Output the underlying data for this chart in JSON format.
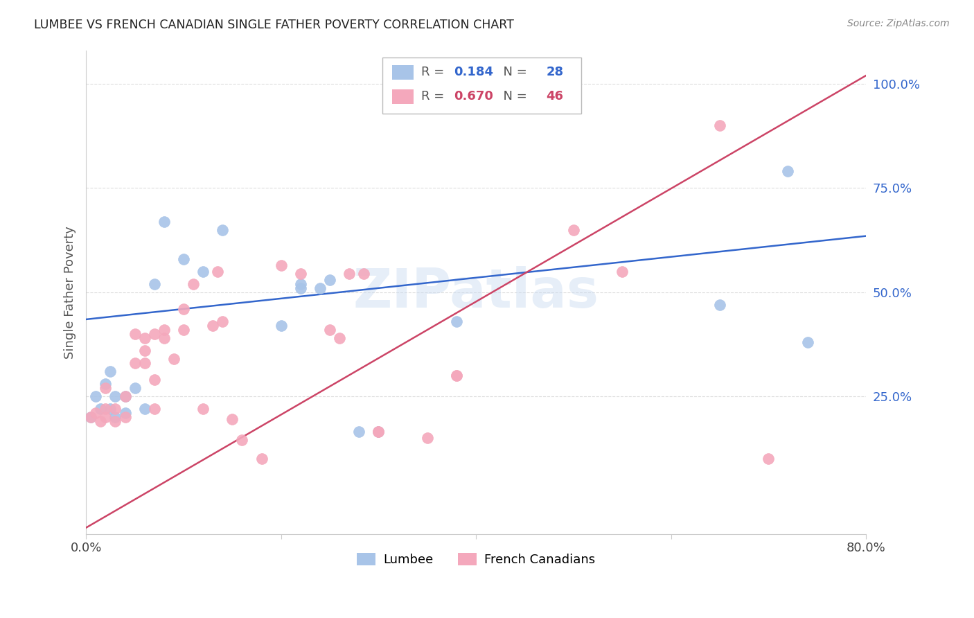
{
  "title": "LUMBEE VS FRENCH CANADIAN SINGLE FATHER POVERTY CORRELATION CHART",
  "source": "Source: ZipAtlas.com",
  "ylabel": "Single Father Poverty",
  "xlim": [
    0.0,
    0.8
  ],
  "ylim": [
    -0.08,
    1.08
  ],
  "x_ticks": [
    0.0,
    0.2,
    0.4,
    0.6,
    0.8
  ],
  "x_tick_labels": [
    "0.0%",
    "",
    "",
    "",
    "80.0%"
  ],
  "y_ticks": [
    0.25,
    0.5,
    0.75,
    1.0
  ],
  "y_tick_labels": [
    "25.0%",
    "50.0%",
    "75.0%",
    "100.0%"
  ],
  "lumbee_color": "#a8c4e8",
  "french_color": "#f4a8bc",
  "lumbee_line_color": "#3366cc",
  "french_line_color": "#cc4466",
  "lumbee_R": 0.184,
  "lumbee_N": 28,
  "french_R": 0.67,
  "french_N": 46,
  "watermark": "ZIPatlas",
  "background_color": "#ffffff",
  "lumbee_line_x0": 0.0,
  "lumbee_line_y0": 0.435,
  "lumbee_line_x1": 0.8,
  "lumbee_line_y1": 0.635,
  "french_line_x0": 0.0,
  "french_line_y0": -0.065,
  "french_line_x1": 0.8,
  "french_line_y1": 1.02,
  "lumbee_x": [
    0.005,
    0.01,
    0.015,
    0.02,
    0.025,
    0.025,
    0.03,
    0.03,
    0.04,
    0.04,
    0.05,
    0.06,
    0.07,
    0.08,
    0.1,
    0.12,
    0.14,
    0.2,
    0.22,
    0.25,
    0.28,
    0.3,
    0.22,
    0.24,
    0.38,
    0.65,
    0.72,
    0.74
  ],
  "lumbee_y": [
    0.2,
    0.25,
    0.22,
    0.28,
    0.22,
    0.31,
    0.2,
    0.25,
    0.25,
    0.21,
    0.27,
    0.22,
    0.52,
    0.67,
    0.58,
    0.55,
    0.65,
    0.42,
    0.52,
    0.53,
    0.165,
    0.165,
    0.51,
    0.51,
    0.43,
    0.47,
    0.79,
    0.38
  ],
  "french_x": [
    0.005,
    0.01,
    0.015,
    0.02,
    0.02,
    0.02,
    0.03,
    0.03,
    0.04,
    0.04,
    0.05,
    0.05,
    0.06,
    0.06,
    0.06,
    0.07,
    0.07,
    0.07,
    0.08,
    0.08,
    0.09,
    0.1,
    0.1,
    0.11,
    0.12,
    0.13,
    0.135,
    0.14,
    0.15,
    0.16,
    0.18,
    0.2,
    0.22,
    0.25,
    0.26,
    0.27,
    0.285,
    0.3,
    0.3,
    0.35,
    0.38,
    0.38,
    0.5,
    0.55,
    0.65,
    0.7
  ],
  "french_y": [
    0.2,
    0.21,
    0.19,
    0.2,
    0.22,
    0.27,
    0.19,
    0.22,
    0.2,
    0.25,
    0.33,
    0.4,
    0.33,
    0.36,
    0.39,
    0.22,
    0.29,
    0.4,
    0.39,
    0.41,
    0.34,
    0.41,
    0.46,
    0.52,
    0.22,
    0.42,
    0.55,
    0.43,
    0.195,
    0.145,
    0.1,
    0.565,
    0.545,
    0.41,
    0.39,
    0.545,
    0.545,
    0.165,
    0.165,
    0.15,
    0.3,
    0.3,
    0.65,
    0.55,
    0.9,
    0.1
  ],
  "marker_size": 130
}
